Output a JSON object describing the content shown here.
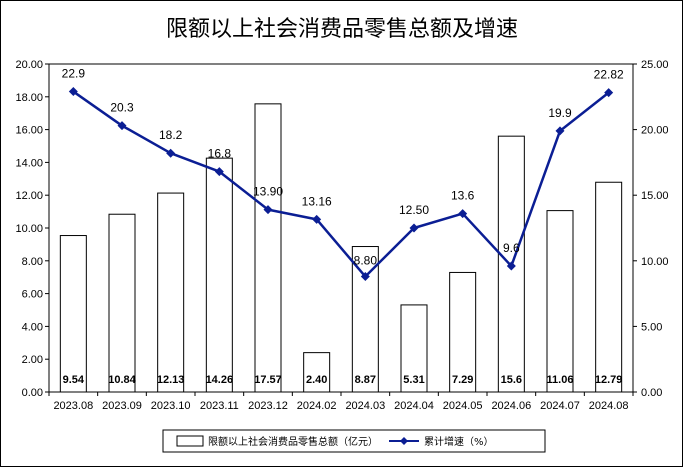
{
  "chart_data": {
    "type": "bar",
    "title": "限额以上社会消费品零售总额及增速",
    "categories": [
      "2023.08",
      "2023.09",
      "2023.10",
      "2023.11",
      "2023.12",
      "2024.02",
      "2024.03",
      "2024.04",
      "2024.05",
      "2024.06",
      "2024.07",
      "2024.08"
    ],
    "series": [
      {
        "name": "限额以上社会消费品零售总额（亿元）",
        "type": "bar",
        "axis": "left",
        "values": [
          9.54,
          10.84,
          12.13,
          14.26,
          17.57,
          2.4,
          8.87,
          5.31,
          7.29,
          15.6,
          11.06,
          12.79
        ],
        "labels": [
          "9.54",
          "10.84",
          "12.13",
          "14.26",
          "17.57",
          "2.40",
          "8.87",
          "5.31",
          "7.29",
          "15.6",
          "11.06",
          "12.79"
        ],
        "color": "#ffffff"
      },
      {
        "name": "累计增速（%）",
        "type": "line",
        "axis": "right",
        "values": [
          22.9,
          20.3,
          18.2,
          16.8,
          13.9,
          13.16,
          8.8,
          12.5,
          13.6,
          9.6,
          19.9,
          22.82
        ],
        "labels": [
          "22.9",
          "20.3",
          "18.2",
          "16.8",
          "13.90",
          "13.16",
          "8.80",
          "12.50",
          "13.6",
          "9.6",
          "19.9",
          "22.82"
        ],
        "color": "#0b1e94"
      }
    ],
    "y_left": {
      "min": 0,
      "max": 20,
      "step": 2,
      "ticks": [
        "0.00",
        "2.00",
        "4.00",
        "6.00",
        "8.00",
        "10.00",
        "12.00",
        "14.00",
        "16.00",
        "18.00",
        "20.00"
      ]
    },
    "y_right": {
      "min": 0,
      "max": 25,
      "step": 5,
      "ticks": [
        "0.00",
        "5.00",
        "10.00",
        "15.00",
        "20.00",
        "25.00"
      ]
    },
    "grid": false,
    "legend_position": "bottom"
  }
}
